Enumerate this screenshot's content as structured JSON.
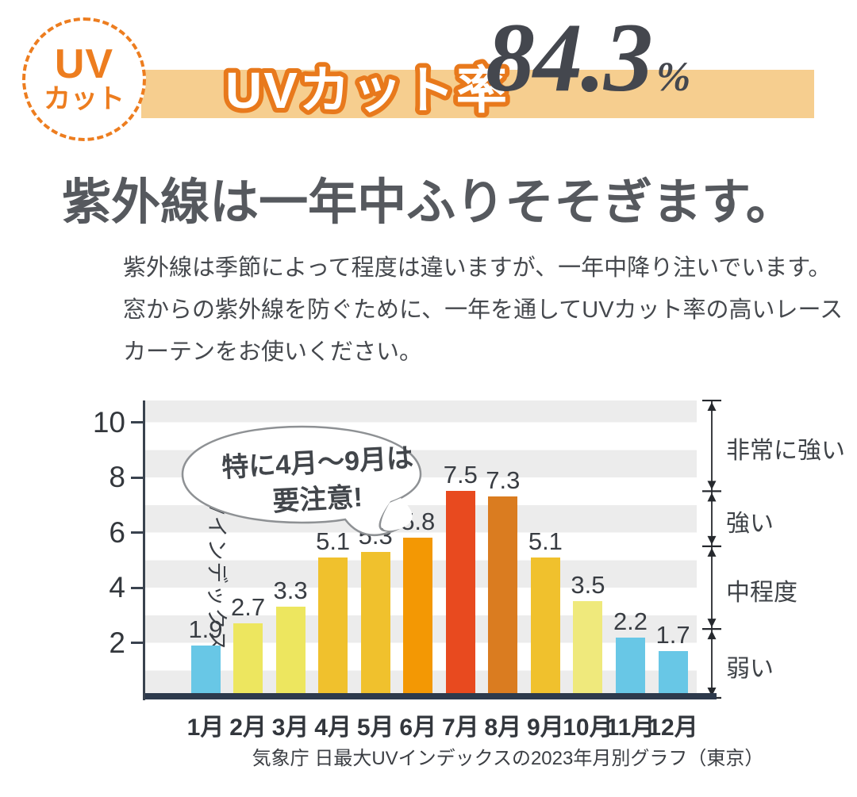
{
  "header": {
    "badge": {
      "line1": "UV",
      "line2": "カット"
    },
    "banner_label": "UVカット率",
    "percent_value": "84.3",
    "percent_unit": "%"
  },
  "heading": "紫外線は一年中ふりそそぎます。",
  "intro": {
    "lines": [
      "紫外線は季節によって程度は違いますが、一年中降り注いでいます。",
      "窓からの紫外線を防ぐために、一年を通してUVカット率の高いレース",
      "カーテンをお使いください。"
    ]
  },
  "bubble": {
    "line1": "特に4月〜9月は",
    "line2": "要注意!"
  },
  "chart_data": {
    "type": "bar",
    "categories": [
      "1月",
      "2月",
      "3月",
      "4月",
      "5月",
      "6月",
      "7月",
      "8月",
      "9月",
      "10月",
      "11月",
      "12月"
    ],
    "values": [
      1.9,
      2.7,
      3.3,
      5.1,
      5.3,
      5.8,
      7.5,
      7.3,
      5.1,
      3.5,
      2.2,
      1.7
    ],
    "bar_colors": [
      "#68C7E6",
      "#EDE65F",
      "#EDE65F",
      "#F0C12D",
      "#F0C12D",
      "#F39804",
      "#E84A1F",
      "#DA7C20",
      "#F0C12D",
      "#EFE97C",
      "#68C7E6",
      "#68C7E6"
    ],
    "ylabel": "UVインデックス",
    "yticks": [
      2,
      4,
      6,
      8,
      10
    ],
    "ylim": [
      0,
      10.79
    ],
    "grid": "horizontal-bands",
    "annotation": "特に4月〜9月は要注意!",
    "right_scale": [
      {
        "label": "非常に強い",
        "from": 7.5,
        "to": 10.79
      },
      {
        "label": "強い",
        "from": 5.5,
        "to": 7.5
      },
      {
        "label": "中程度",
        "from": 2.5,
        "to": 5.5
      },
      {
        "label": "弱い",
        "from": 0,
        "to": 2.5
      }
    ],
    "source": "気象庁 日最大UVインデックスの2023年月別グラフ（東京）"
  },
  "colors": {
    "accent_orange": "#ED7D1F",
    "banner_bg": "#F6CE8F",
    "number_dark": "#44474E",
    "axis_navy": "#2D3A4C",
    "stripe_gray": "#ECECEC"
  }
}
